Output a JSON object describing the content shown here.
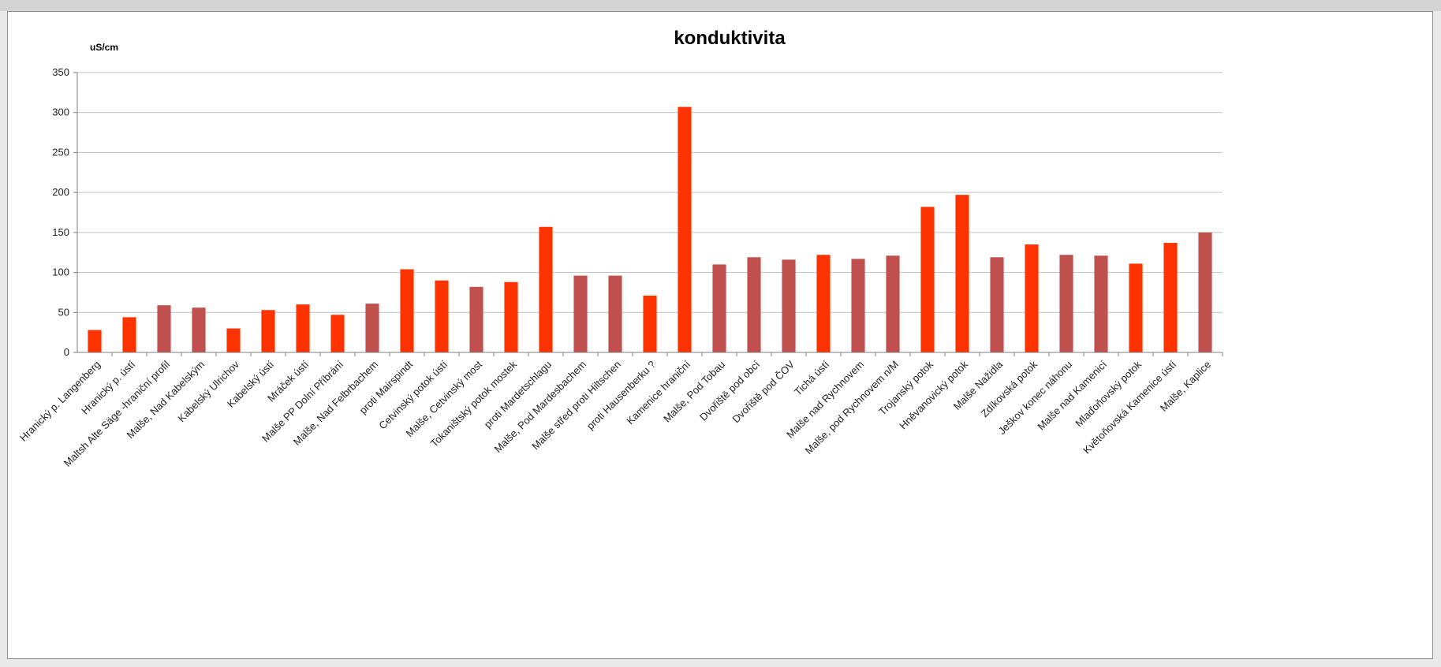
{
  "chart_data": {
    "type": "bar",
    "title": "konduktivita",
    "ylabel": "uS/cm",
    "xlabel": "",
    "ylim": [
      0,
      350
    ],
    "yticks": [
      0,
      50,
      100,
      150,
      200,
      250,
      300,
      350
    ],
    "grid": true,
    "legend": "none",
    "categories": [
      "Hranický p. Langenberg",
      "Hranický p. ústí",
      "Maltsh Alte Säge -hraniční profil",
      "Malše, Nad Kabelským",
      "Kabelský Ulrichov",
      "Kabelský ústí",
      "Mráček ústí",
      "Malše PP Dolní Příbrání",
      "Malše, Nad Felbrbachem",
      "proti Mairspindt",
      "Cetvinský potok ústí",
      "Malše, Cetvinský most",
      "Tokaništský potok mostek",
      "proti Mardetschlagu",
      "Malše, Pod Mardesbachem",
      "Malše střed proti Hiltschen",
      "proti Hausenberku  ?",
      "Kamenice hraniční",
      "Malše, Pod Tobau",
      "Dvořiště pod obcí",
      "Dvořiště pod ČOV",
      "Tichá ústí",
      "Malše nad Rychnovem",
      "Malše, pod Rychnovem n/M",
      "Trojanský potok",
      "Hněvanovický potok",
      "Malše Nažidla",
      "Zdíkovská potok",
      "Ješkov konec náhonu",
      "Malše nad Kamenicí",
      "Mlaďoňovský potok",
      "Květoňovská Kamenice ústí",
      "Malše, Kaplice"
    ],
    "values": [
      28,
      44,
      59,
      56,
      30,
      53,
      60,
      47,
      61,
      104,
      90,
      82,
      88,
      157,
      96,
      96,
      71,
      307,
      110,
      119,
      116,
      122,
      117,
      121,
      182,
      197,
      119,
      135,
      122,
      121,
      111,
      137,
      150
    ],
    "bar_color_group": [
      "tributary",
      "tributary",
      "main",
      "main",
      "tributary",
      "tributary",
      "tributary",
      "tributary",
      "main",
      "tributary",
      "tributary",
      "main",
      "tributary",
      "tributary",
      "main",
      "main",
      "tributary",
      "tributary",
      "main",
      "main",
      "main",
      "tributary",
      "main",
      "main",
      "tributary",
      "tributary",
      "main",
      "tributary",
      "main",
      "main",
      "tributary",
      "tributary",
      "main"
    ],
    "colors": {
      "tributary": "#ff3300",
      "main": "#c0504d",
      "grid": "#bfbfbf",
      "axis": "#7f7f7f",
      "text": "#000000"
    }
  }
}
